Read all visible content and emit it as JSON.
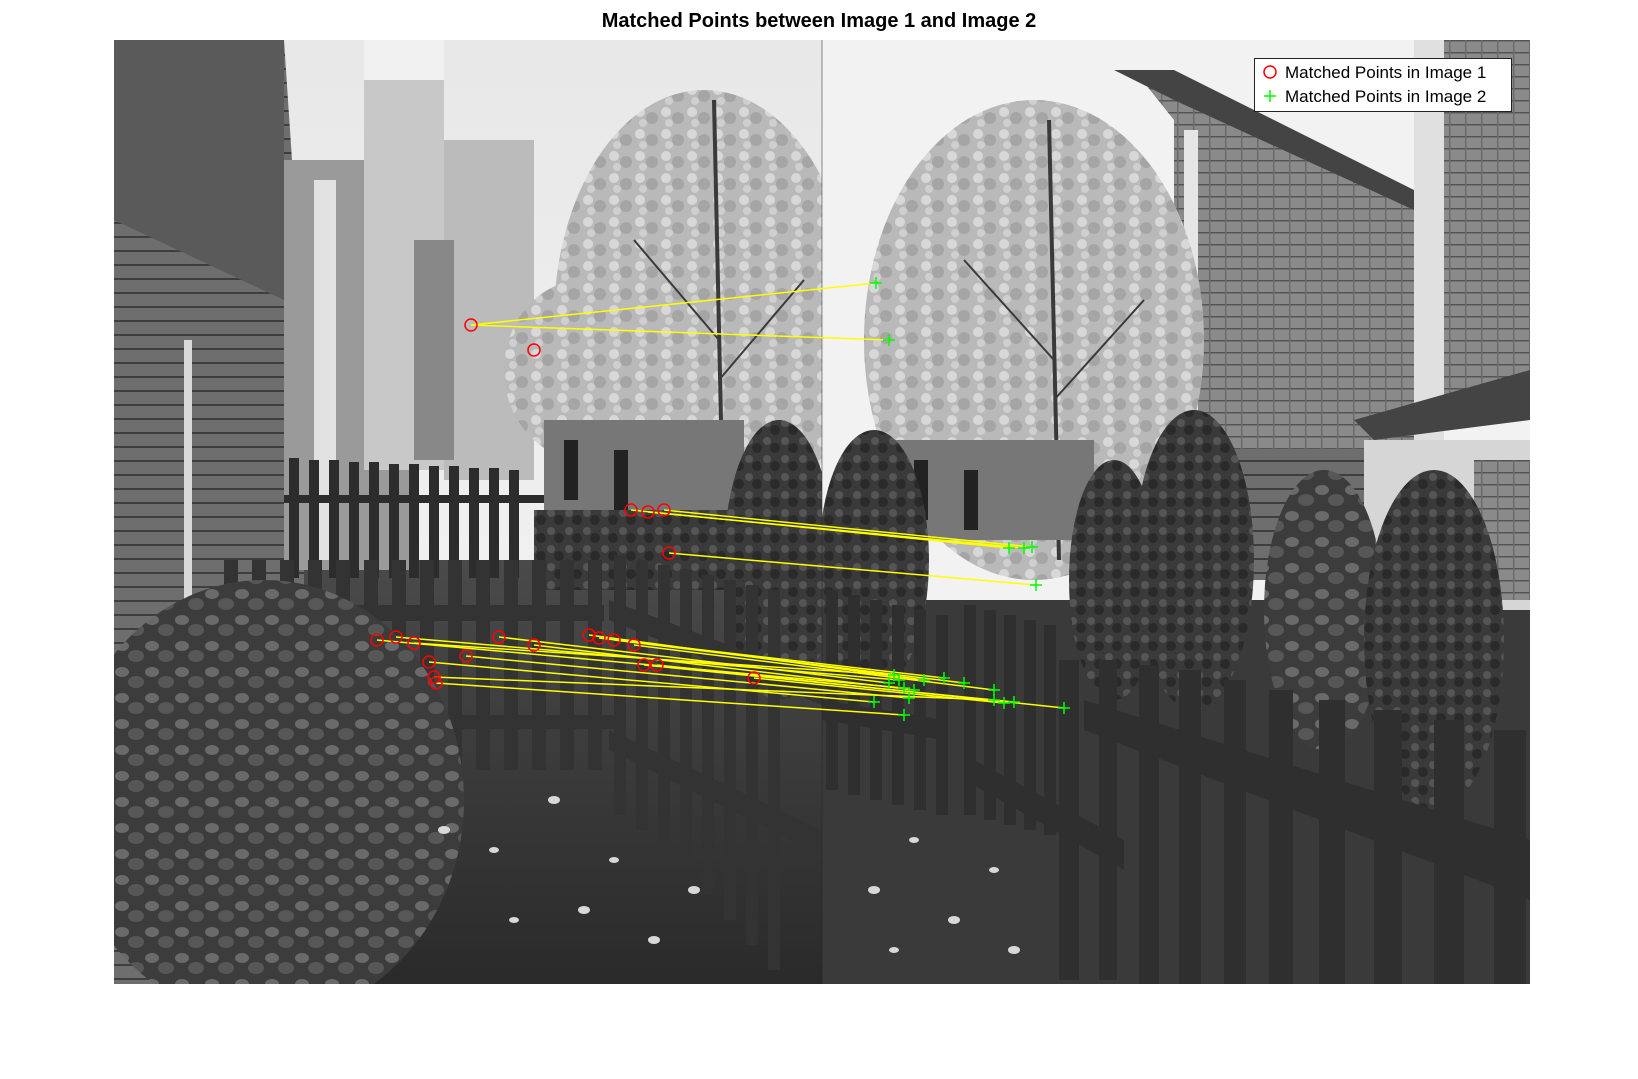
{
  "figure": {
    "title": "Matched Points between Image 1 and Image 2"
  },
  "legend": {
    "items": [
      {
        "label": "Matched Points in Image 1",
        "marker": "circle",
        "color": "#ff0000"
      },
      {
        "label": "Matched Points in Image 2",
        "marker": "plus",
        "color": "#00ff00"
      }
    ]
  },
  "colors": {
    "match_line": "#ffff00",
    "image1_marker": "#ff0000",
    "image2_marker": "#00ff00"
  }
}
